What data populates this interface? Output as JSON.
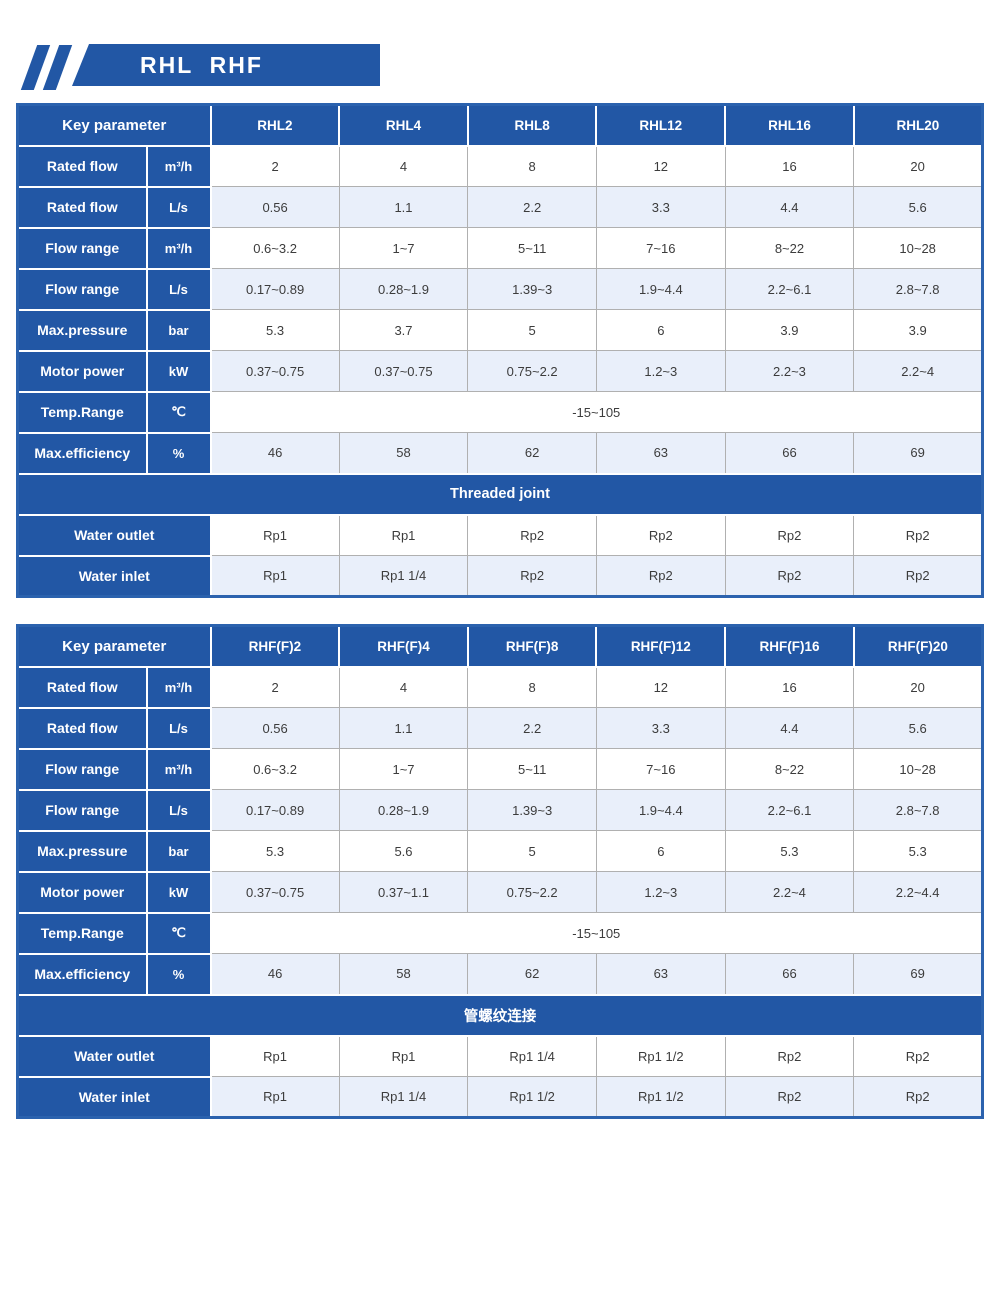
{
  "page": {
    "banner_title": "RHL  RHF"
  },
  "colors": {
    "primary_blue": "#2257a5",
    "table_outer_border": "#2b62ae",
    "light_row_background": "#e9effa",
    "value_text": "#3c3c3c"
  },
  "tables": [
    {
      "key_parameter_label": "Key parameter",
      "columns": [
        "RHL2",
        "RHL4",
        "RHL8",
        "RHL12",
        "RHL16",
        "RHL20"
      ],
      "rows": [
        {
          "type": "data",
          "label": "Rated flow",
          "unit": "m³/h",
          "values": [
            "2",
            "4",
            "8",
            "12",
            "16",
            "20"
          ]
        },
        {
          "type": "data",
          "label": "Rated flow",
          "unit": "L/s",
          "values": [
            "0.56",
            "1.1",
            "2.2",
            "3.3",
            "4.4",
            "5.6"
          ]
        },
        {
          "type": "data",
          "label": "Flow range",
          "unit": "m³/h",
          "values": [
            "0.6~3.2",
            "1~7",
            "5~11",
            "7~16",
            "8~22",
            "10~28"
          ]
        },
        {
          "type": "data",
          "label": "Flow range",
          "unit": "L/s",
          "values": [
            "0.17~0.89",
            "0.28~1.9",
            "1.39~3",
            "1.9~4.4",
            "2.2~6.1",
            "2.8~7.8"
          ]
        },
        {
          "type": "data",
          "label": "Max.pressure",
          "unit": "bar",
          "values": [
            "5.3",
            "3.7",
            "5",
            "6",
            "3.9",
            "3.9"
          ]
        },
        {
          "type": "data",
          "label": "Motor power",
          "unit": "kW",
          "values": [
            "0.37~0.75",
            "0.37~0.75",
            "0.75~2.2",
            "1.2~3",
            "2.2~3",
            "2.2~4"
          ]
        },
        {
          "type": "span",
          "label": "Temp.Range",
          "unit": "℃",
          "value": "-15~105"
        },
        {
          "type": "data",
          "label": "Max.efficiency",
          "unit": "%",
          "values": [
            "46",
            "58",
            "62",
            "63",
            "66",
            "69"
          ]
        },
        {
          "type": "section",
          "label": "Threaded joint"
        },
        {
          "type": "wide",
          "label": "Water outlet",
          "values": [
            "Rp1",
            "Rp1",
            "Rp2",
            "Rp2",
            "Rp2",
            "Rp2"
          ]
        },
        {
          "type": "wide",
          "label": "Water inlet",
          "values": [
            "Rp1",
            "Rp1 1/4",
            "Rp2",
            "Rp2",
            "Rp2",
            "Rp2"
          ]
        }
      ]
    },
    {
      "key_parameter_label": "Key parameter",
      "columns": [
        "RHF(F)2",
        "RHF(F)4",
        "RHF(F)8",
        "RHF(F)12",
        "RHF(F)16",
        "RHF(F)20"
      ],
      "rows": [
        {
          "type": "data",
          "label": "Rated flow",
          "unit": "m³/h",
          "values": [
            "2",
            "4",
            "8",
            "12",
            "16",
            "20"
          ]
        },
        {
          "type": "data",
          "label": "Rated flow",
          "unit": "L/s",
          "values": [
            "0.56",
            "1.1",
            "2.2",
            "3.3",
            "4.4",
            "5.6"
          ]
        },
        {
          "type": "data",
          "label": "Flow range",
          "unit": "m³/h",
          "values": [
            "0.6~3.2",
            "1~7",
            "5~11",
            "7~16",
            "8~22",
            "10~28"
          ]
        },
        {
          "type": "data",
          "label": "Flow range",
          "unit": "L/s",
          "values": [
            "0.17~0.89",
            "0.28~1.9",
            "1.39~3",
            "1.9~4.4",
            "2.2~6.1",
            "2.8~7.8"
          ]
        },
        {
          "type": "data",
          "label": "Max.pressure",
          "unit": "bar",
          "values": [
            "5.3",
            "5.6",
            "5",
            "6",
            "5.3",
            "5.3"
          ]
        },
        {
          "type": "data",
          "label": "Motor power",
          "unit": "kW",
          "values": [
            "0.37~0.75",
            "0.37~1.1",
            "0.75~2.2",
            "1.2~3",
            "2.2~4",
            "2.2~4.4"
          ]
        },
        {
          "type": "span",
          "label": "Temp.Range",
          "unit": "℃",
          "value": "-15~105"
        },
        {
          "type": "data",
          "label": "Max.efficiency",
          "unit": "%",
          "values": [
            "46",
            "58",
            "62",
            "63",
            "66",
            "69"
          ]
        },
        {
          "type": "section",
          "label": "管螺纹连接"
        },
        {
          "type": "wide",
          "label": "Water outlet",
          "values": [
            "Rp1",
            "Rp1",
            "Rp1 1/4",
            "Rp1 1/2",
            "Rp2",
            "Rp2"
          ]
        },
        {
          "type": "wide",
          "label": "Water inlet",
          "values": [
            "Rp1",
            "Rp1 1/4",
            "Rp1 1/2",
            "Rp1 1/2",
            "Rp2",
            "Rp2"
          ]
        }
      ]
    }
  ]
}
